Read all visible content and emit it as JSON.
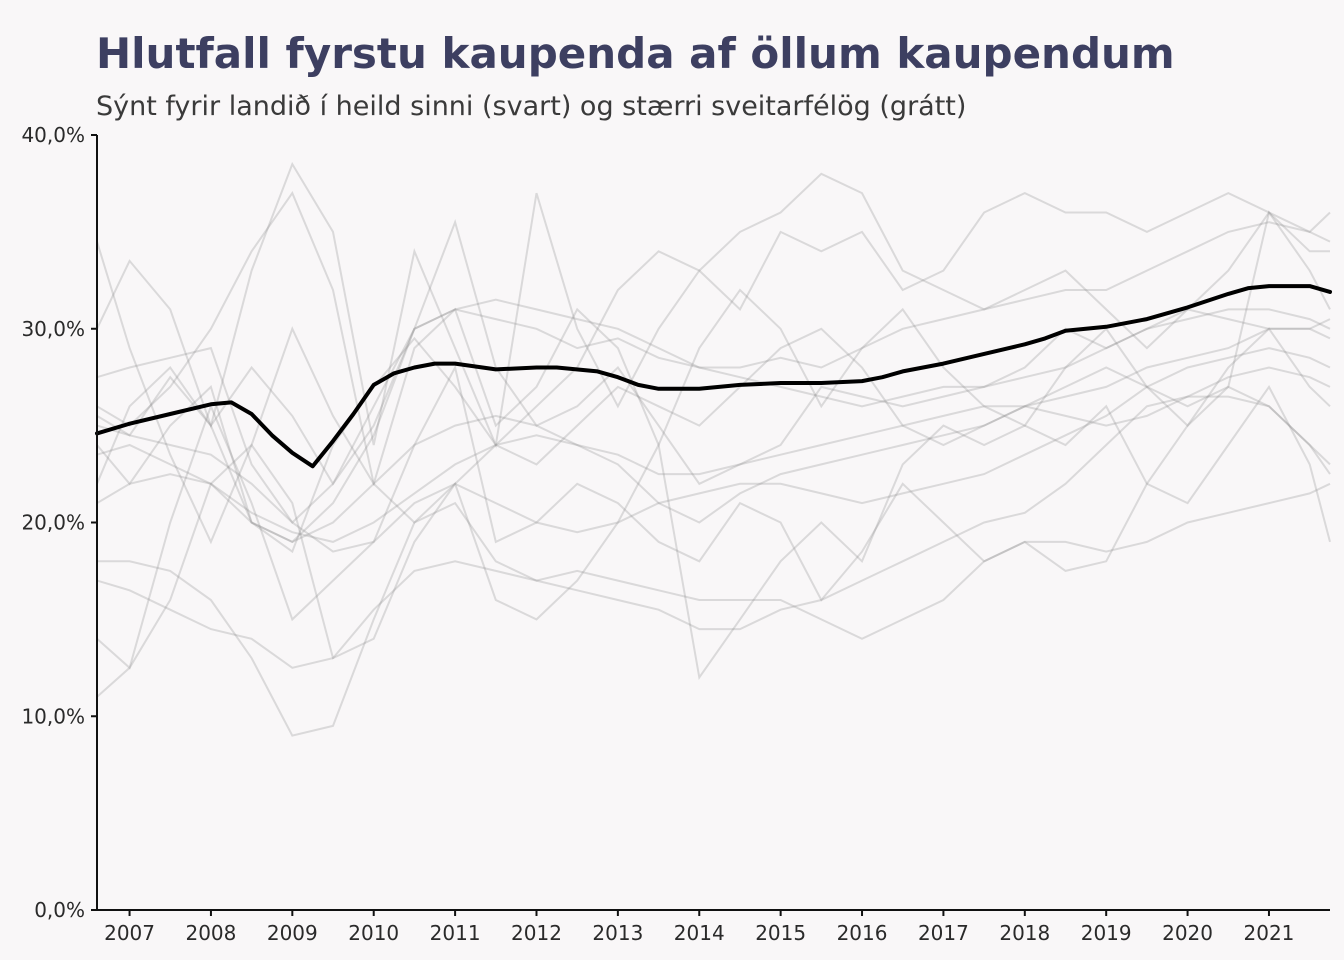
{
  "chart_data": {
    "type": "line",
    "title": "Hlutfall fyrstu kaupenda af öllum kaupendum",
    "subtitle": "Sýnt fyrir landið í heild sinni (svart) og stærri sveitarfélög (grátt)",
    "xlabel": "",
    "ylabel": "",
    "xlim": [
      2006.6,
      2021.75
    ],
    "ylim": [
      0,
      0.4
    ],
    "y_ticks": [
      0,
      0.1,
      0.2,
      0.3,
      0.4
    ],
    "y_tick_labels": [
      "0,0%",
      "10,0%",
      "20,0%",
      "30,0%",
      "40,0%"
    ],
    "x_ticks": [
      2007,
      2008,
      2009,
      2010,
      2011,
      2012,
      2013,
      2014,
      2015,
      2016,
      2017,
      2018,
      2019,
      2020,
      2021
    ],
    "x_tick_labels": [
      "2007",
      "2008",
      "2009",
      "2010",
      "2011",
      "2012",
      "2013",
      "2014",
      "2015",
      "2016",
      "2017",
      "2018",
      "2019",
      "2020",
      "2021"
    ],
    "grid": false,
    "legend": "none",
    "colors": {
      "highlight": "#000000",
      "background_series": "#8c8c8c",
      "title": "#3d3f61"
    },
    "highlight_series": {
      "x": [
        2006.6,
        2007.0,
        2007.5,
        2008.0,
        2008.25,
        2008.5,
        2008.75,
        2009.0,
        2009.25,
        2009.5,
        2009.75,
        2010.0,
        2010.25,
        2010.5,
        2010.75,
        2011.0,
        2011.5,
        2012.0,
        2012.25,
        2012.75,
        2013.0,
        2013.25,
        2013.5,
        2014.0,
        2014.5,
        2015.0,
        2015.5,
        2016.0,
        2016.25,
        2016.5,
        2017.0,
        2017.5,
        2018.0,
        2018.25,
        2018.5,
        2019.0,
        2019.5,
        2020.0,
        2020.5,
        2020.75,
        2021.0,
        2021.25,
        2021.5,
        2021.75
      ],
      "y": [
        0.246,
        0.251,
        0.256,
        0.261,
        0.262,
        0.256,
        0.245,
        0.236,
        0.229,
        0.242,
        0.256,
        0.271,
        0.277,
        0.28,
        0.282,
        0.282,
        0.279,
        0.28,
        0.28,
        0.278,
        0.275,
        0.271,
        0.269,
        0.269,
        0.271,
        0.272,
        0.272,
        0.273,
        0.275,
        0.278,
        0.282,
        0.287,
        0.292,
        0.295,
        0.299,
        0.301,
        0.305,
        0.311,
        0.318,
        0.321,
        0.322,
        0.322,
        0.322,
        0.319
      ]
    },
    "background_series": [
      {
        "x": [
          2006.6,
          2007.0,
          2007.5,
          2008.0,
          2008.5,
          2009.0,
          2009.5,
          2010.0,
          2010.5,
          2011.0,
          2011.5,
          2012.0,
          2012.5,
          2013.0,
          2013.5,
          2014.0,
          2014.5,
          2015.0,
          2015.5,
          2016.0,
          2016.5,
          2017.0,
          2017.5,
          2018.0,
          2018.5,
          2019.0,
          2019.5,
          2020.0,
          2020.5,
          2021.0,
          2021.5,
          2021.75
        ],
        "y": [
          0.345,
          0.29,
          0.235,
          0.19,
          0.24,
          0.3,
          0.255,
          0.22,
          0.29,
          0.31,
          0.25,
          0.27,
          0.31,
          0.29,
          0.24,
          0.29,
          0.32,
          0.3,
          0.26,
          0.29,
          0.31,
          0.28,
          0.26,
          0.25,
          0.28,
          0.3,
          0.27,
          0.25,
          0.28,
          0.3,
          0.27,
          0.26
        ]
      },
      {
        "x": [
          2006.6,
          2007.0,
          2007.5,
          2008.0,
          2008.5,
          2009.0,
          2009.5,
          2010.0,
          2010.5,
          2011.0,
          2011.5,
          2012.0,
          2012.5,
          2013.0,
          2013.5,
          2014.0,
          2014.5,
          2015.0,
          2015.5,
          2016.0,
          2016.5,
          2017.0,
          2017.5,
          2018.0,
          2018.5,
          2019.0,
          2019.5,
          2020.0,
          2020.5,
          2021.0,
          2021.5,
          2021.75
        ],
        "y": [
          0.3,
          0.335,
          0.31,
          0.25,
          0.33,
          0.385,
          0.35,
          0.24,
          0.34,
          0.29,
          0.24,
          0.37,
          0.3,
          0.26,
          0.3,
          0.33,
          0.35,
          0.36,
          0.38,
          0.37,
          0.33,
          0.32,
          0.31,
          0.32,
          0.33,
          0.31,
          0.29,
          0.31,
          0.33,
          0.36,
          0.35,
          0.36
        ]
      },
      {
        "x": [
          2006.6,
          2007.0,
          2007.5,
          2008.0,
          2008.5,
          2009.0,
          2009.5,
          2010.0,
          2010.5,
          2011.0,
          2011.5,
          2012.0,
          2012.5,
          2013.0,
          2013.5,
          2014.0,
          2014.5,
          2015.0,
          2015.5,
          2016.0,
          2016.5,
          2017.0,
          2017.5,
          2018.0,
          2018.5,
          2019.0,
          2019.5,
          2020.0,
          2020.5,
          2021.0,
          2021.5,
          2021.75
        ],
        "y": [
          0.26,
          0.25,
          0.27,
          0.3,
          0.34,
          0.37,
          0.32,
          0.22,
          0.2,
          0.22,
          0.24,
          0.26,
          0.28,
          0.32,
          0.34,
          0.33,
          0.31,
          0.35,
          0.34,
          0.35,
          0.32,
          0.33,
          0.36,
          0.37,
          0.36,
          0.36,
          0.35,
          0.36,
          0.37,
          0.36,
          0.34,
          0.34
        ]
      },
      {
        "x": [
          2006.6,
          2007.0,
          2007.5,
          2008.0,
          2008.5,
          2009.0,
          2009.5,
          2010.0,
          2010.5,
          2011.0,
          2011.5,
          2012.0,
          2012.5,
          2013.0,
          2013.5,
          2014.0,
          2014.5,
          2015.0,
          2015.5,
          2016.0,
          2016.5,
          2017.0,
          2017.5,
          2018.0,
          2018.5,
          2019.0,
          2019.5,
          2020.0,
          2020.5,
          2021.0,
          2021.5,
          2021.75
        ],
        "y": [
          0.24,
          0.22,
          0.25,
          0.27,
          0.2,
          0.19,
          0.21,
          0.245,
          0.3,
          0.31,
          0.305,
          0.3,
          0.29,
          0.295,
          0.285,
          0.28,
          0.28,
          0.285,
          0.28,
          0.29,
          0.3,
          0.305,
          0.31,
          0.315,
          0.32,
          0.32,
          0.33,
          0.34,
          0.35,
          0.355,
          0.35,
          0.345
        ]
      },
      {
        "x": [
          2006.6,
          2007.0,
          2007.5,
          2008.0,
          2008.5,
          2009.0,
          2009.5,
          2010.0,
          2010.5,
          2011.0,
          2011.5,
          2012.0,
          2012.5,
          2013.0,
          2013.5,
          2014.0,
          2014.5,
          2015.0,
          2015.5,
          2016.0,
          2016.5,
          2017.0,
          2017.5,
          2018.0,
          2018.5,
          2019.0,
          2019.5,
          2020.0,
          2020.5,
          2021.0,
          2021.5,
          2021.75
        ],
        "y": [
          0.275,
          0.28,
          0.285,
          0.29,
          0.23,
          0.2,
          0.22,
          0.26,
          0.3,
          0.31,
          0.315,
          0.31,
          0.305,
          0.3,
          0.29,
          0.28,
          0.275,
          0.27,
          0.265,
          0.26,
          0.265,
          0.27,
          0.27,
          0.275,
          0.28,
          0.29,
          0.3,
          0.305,
          0.31,
          0.31,
          0.305,
          0.3
        ]
      },
      {
        "x": [
          2006.6,
          2007.0,
          2007.5,
          2008.0,
          2008.5,
          2009.0,
          2009.5,
          2010.0,
          2010.5,
          2011.0,
          2011.5,
          2012.0,
          2012.5,
          2013.0,
          2013.5,
          2014.0,
          2014.5,
          2015.0,
          2015.5,
          2016.0,
          2016.5,
          2017.0,
          2017.5,
          2018.0,
          2018.5,
          2019.0,
          2019.5,
          2020.0,
          2020.5,
          2021.0,
          2021.5,
          2021.75
        ],
        "y": [
          0.255,
          0.245,
          0.275,
          0.25,
          0.2,
          0.185,
          0.24,
          0.27,
          0.295,
          0.27,
          0.24,
          0.23,
          0.25,
          0.27,
          0.26,
          0.25,
          0.27,
          0.29,
          0.3,
          0.28,
          0.25,
          0.24,
          0.25,
          0.26,
          0.27,
          0.28,
          0.27,
          0.26,
          0.27,
          0.26,
          0.24,
          0.225
        ]
      },
      {
        "x": [
          2006.6,
          2007.0,
          2007.5,
          2008.0,
          2008.5,
          2009.0,
          2009.5,
          2010.0,
          2010.5,
          2011.0,
          2011.5,
          2012.0,
          2012.5,
          2013.0,
          2013.5,
          2014.0,
          2014.5,
          2015.0,
          2015.5,
          2016.0,
          2016.5,
          2017.0,
          2017.5,
          2018.0,
          2018.5,
          2019.0,
          2019.5,
          2020.0,
          2020.5,
          2021.0,
          2021.5,
          2021.75
        ],
        "y": [
          0.235,
          0.24,
          0.23,
          0.22,
          0.2,
          0.19,
          0.2,
          0.22,
          0.24,
          0.25,
          0.255,
          0.25,
          0.24,
          0.23,
          0.21,
          0.2,
          0.215,
          0.225,
          0.23,
          0.235,
          0.24,
          0.245,
          0.25,
          0.26,
          0.265,
          0.27,
          0.28,
          0.285,
          0.29,
          0.3,
          0.3,
          0.295
        ]
      },
      {
        "x": [
          2006.6,
          2007.0,
          2007.5,
          2008.0,
          2008.5,
          2009.0,
          2009.5,
          2010.0,
          2010.5,
          2011.0,
          2011.5,
          2012.0,
          2012.5,
          2013.0,
          2013.5,
          2014.0,
          2014.5,
          2015.0,
          2015.5,
          2016.0,
          2016.5,
          2017.0,
          2017.5,
          2018.0,
          2018.5,
          2019.0,
          2019.5,
          2020.0,
          2020.5,
          2021.0,
          2021.5,
          2021.75
        ],
        "y": [
          0.21,
          0.22,
          0.225,
          0.22,
          0.205,
          0.195,
          0.19,
          0.2,
          0.215,
          0.23,
          0.24,
          0.245,
          0.24,
          0.235,
          0.225,
          0.225,
          0.23,
          0.235,
          0.24,
          0.245,
          0.25,
          0.255,
          0.26,
          0.26,
          0.255,
          0.25,
          0.255,
          0.265,
          0.275,
          0.28,
          0.275,
          0.27
        ]
      },
      {
        "x": [
          2006.6,
          2007.0,
          2007.5,
          2008.0,
          2008.5,
          2009.0,
          2009.5,
          2010.0,
          2010.5,
          2011.0,
          2011.5,
          2012.0,
          2012.5,
          2013.0,
          2013.5,
          2014.0,
          2014.5,
          2015.0,
          2015.5,
          2016.0,
          2016.5,
          2017.0,
          2017.5,
          2018.0,
          2018.5,
          2019.0,
          2019.5,
          2020.0,
          2020.5,
          2021.0,
          2021.5,
          2021.75
        ],
        "y": [
          0.18,
          0.18,
          0.175,
          0.16,
          0.13,
          0.09,
          0.095,
          0.15,
          0.2,
          0.21,
          0.18,
          0.17,
          0.175,
          0.17,
          0.165,
          0.16,
          0.16,
          0.16,
          0.15,
          0.14,
          0.15,
          0.16,
          0.18,
          0.19,
          0.19,
          0.185,
          0.19,
          0.2,
          0.205,
          0.21,
          0.215,
          0.22
        ]
      },
      {
        "x": [
          2006.6,
          2007.0,
          2007.5,
          2008.0,
          2008.5,
          2009.0,
          2009.5,
          2010.0,
          2010.5,
          2011.0,
          2011.5,
          2012.0,
          2012.5,
          2013.0,
          2013.5,
          2014.0,
          2014.5,
          2015.0,
          2015.5,
          2016.0,
          2016.5,
          2017.0,
          2017.5,
          2018.0,
          2018.5,
          2019.0,
          2019.5,
          2020.0,
          2020.5,
          2021.0,
          2021.5,
          2021.75
        ],
        "y": [
          0.11,
          0.125,
          0.16,
          0.22,
          0.24,
          0.21,
          0.13,
          0.14,
          0.19,
          0.22,
          0.16,
          0.15,
          0.17,
          0.2,
          0.24,
          0.12,
          0.15,
          0.18,
          0.2,
          0.18,
          0.23,
          0.25,
          0.24,
          0.25,
          0.24,
          0.26,
          0.22,
          0.21,
          0.24,
          0.27,
          0.23,
          0.19
        ]
      },
      {
        "x": [
          2006.6,
          2007.0,
          2007.5,
          2008.0,
          2008.5,
          2009.0,
          2009.5,
          2010.0,
          2010.5,
          2011.0,
          2011.5,
          2012.0,
          2012.5,
          2013.0,
          2013.5,
          2014.0,
          2014.5,
          2015.0,
          2015.5,
          2016.0,
          2016.5,
          2017.0,
          2017.5,
          2018.0,
          2018.5,
          2019.0,
          2019.5,
          2020.0,
          2020.5,
          2021.0,
          2021.5,
          2021.75
        ],
        "y": [
          0.14,
          0.125,
          0.2,
          0.26,
          0.21,
          0.15,
          0.17,
          0.19,
          0.24,
          0.28,
          0.19,
          0.2,
          0.22,
          0.21,
          0.19,
          0.18,
          0.21,
          0.2,
          0.16,
          0.185,
          0.22,
          0.2,
          0.18,
          0.19,
          0.175,
          0.18,
          0.22,
          0.25,
          0.27,
          0.36,
          0.33,
          0.31
        ]
      },
      {
        "x": [
          2006.6,
          2007.0,
          2007.5,
          2008.0,
          2008.5,
          2009.0,
          2009.5,
          2010.0,
          2010.5,
          2011.0,
          2011.5,
          2012.0,
          2012.5,
          2013.0,
          2013.5,
          2014.0,
          2014.5,
          2015.0,
          2015.5,
          2016.0,
          2016.5,
          2017.0,
          2017.5,
          2018.0,
          2018.5,
          2019.0,
          2019.5,
          2020.0,
          2020.5,
          2021.0,
          2021.5,
          2021.75
        ],
        "y": [
          0.17,
          0.165,
          0.155,
          0.145,
          0.14,
          0.125,
          0.13,
          0.155,
          0.175,
          0.18,
          0.175,
          0.17,
          0.165,
          0.16,
          0.155,
          0.145,
          0.145,
          0.155,
          0.16,
          0.17,
          0.18,
          0.19,
          0.2,
          0.205,
          0.22,
          0.24,
          0.26,
          0.265,
          0.265,
          0.26,
          0.24,
          0.23
        ]
      },
      {
        "x": [
          2006.6,
          2007.0,
          2007.5,
          2008.0,
          2008.5,
          2009.0,
          2009.5,
          2010.0,
          2010.5,
          2011.0,
          2011.5,
          2012.0,
          2012.5,
          2013.0,
          2013.5,
          2014.0,
          2014.5,
          2015.0,
          2015.5,
          2016.0,
          2016.5,
          2017.0,
          2017.5,
          2018.0,
          2018.5,
          2019.0,
          2019.5,
          2020.0,
          2020.5,
          2021.0,
          2021.5,
          2021.75
        ],
        "y": [
          0.22,
          0.26,
          0.28,
          0.25,
          0.28,
          0.255,
          0.22,
          0.25,
          0.3,
          0.355,
          0.28,
          0.25,
          0.26,
          0.28,
          0.25,
          0.22,
          0.23,
          0.24,
          0.27,
          0.265,
          0.26,
          0.265,
          0.27,
          0.28,
          0.3,
          0.29,
          0.3,
          0.31,
          0.305,
          0.3,
          0.3,
          0.305
        ]
      },
      {
        "x": [
          2006.6,
          2007.0,
          2007.5,
          2008.0,
          2008.5,
          2009.0,
          2009.5,
          2010.0,
          2010.5,
          2011.0,
          2011.5,
          2012.0,
          2012.5,
          2013.0,
          2013.5,
          2014.0,
          2014.5,
          2015.0,
          2015.5,
          2016.0,
          2016.5,
          2017.0,
          2017.5,
          2018.0,
          2018.5,
          2019.0,
          2019.5,
          2020.0,
          2020.5,
          2021.0,
          2021.5,
          2021.75
        ],
        "y": [
          0.25,
          0.245,
          0.24,
          0.235,
          0.22,
          0.2,
          0.185,
          0.19,
          0.21,
          0.22,
          0.21,
          0.2,
          0.195,
          0.2,
          0.21,
          0.215,
          0.22,
          0.22,
          0.215,
          0.21,
          0.215,
          0.22,
          0.225,
          0.235,
          0.245,
          0.255,
          0.27,
          0.28,
          0.285,
          0.29,
          0.285,
          0.28
        ]
      }
    ]
  }
}
